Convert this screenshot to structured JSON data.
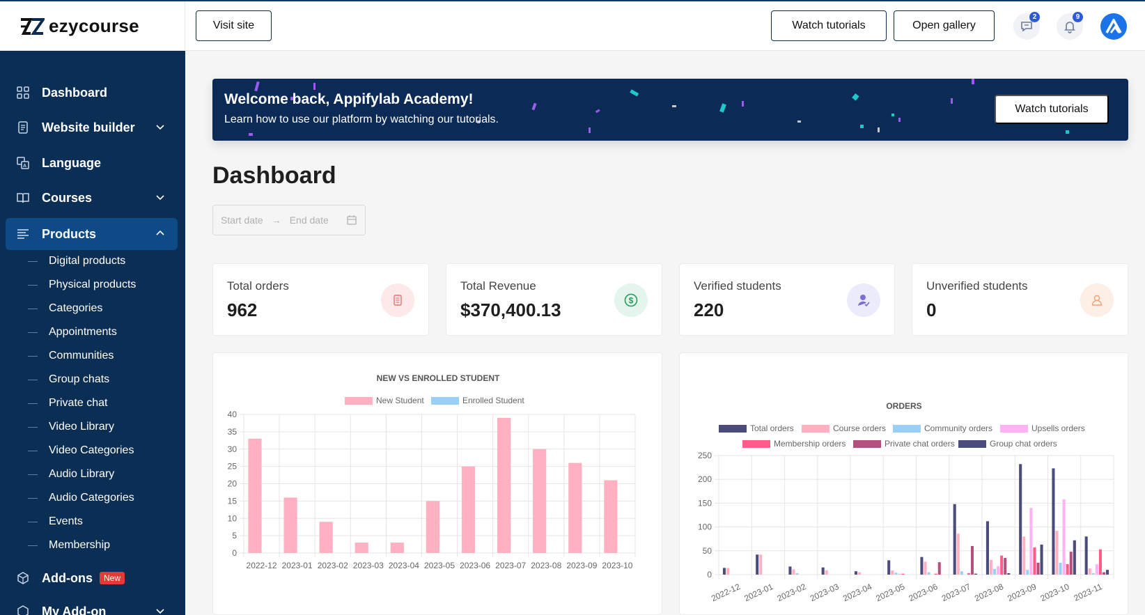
{
  "app": {
    "logo_text": "ezycourse"
  },
  "header": {
    "visit_site": "Visit site",
    "watch_tutorials": "Watch tutorials",
    "open_gallery": "Open gallery",
    "messages_count": "2",
    "notifications_count": "9"
  },
  "sidebar": {
    "items": [
      {
        "label": "Dashboard",
        "icon": "grid-icon"
      },
      {
        "label": "Website builder",
        "icon": "document-icon",
        "expandable": true
      },
      {
        "label": "Language",
        "icon": "translate-icon"
      },
      {
        "label": "Courses",
        "icon": "book-icon",
        "expandable": true
      },
      {
        "label": "Products",
        "icon": "list-icon",
        "expandable": true,
        "active": true
      }
    ],
    "sub_items": [
      "Digital products",
      "Physical products",
      "Categories",
      "Appointments",
      "Communities",
      "Group chats",
      "Private chat",
      "Video Library",
      "Video Categories",
      "Audio Library",
      "Audio Categories",
      "Events",
      "Membership"
    ],
    "addons": {
      "label": "Add-ons",
      "badge": "New"
    },
    "my_addon": {
      "label": "My Add-on"
    }
  },
  "banner": {
    "title": "Welcome back, Appifylab Academy!",
    "subtitle": "Learn how to use our platform by watching our tutorials.",
    "button": "Watch tutorials"
  },
  "page_title": "Dashboard",
  "date_range": {
    "start_placeholder": "Start date",
    "end_placeholder": "End date"
  },
  "stats": [
    {
      "label": "Total orders",
      "value": "962",
      "icon": "orders-icon",
      "bg": "#fde8ea",
      "color": "#e57373"
    },
    {
      "label": "Total Revenue",
      "value": "$370,400.13",
      "icon": "dollar-icon",
      "bg": "#e3f5ec",
      "color": "#1e9e5a"
    },
    {
      "label": "Verified students",
      "value": "220",
      "icon": "verified-user-icon",
      "bg": "#ecebfb",
      "color": "#7b6fd6"
    },
    {
      "label": "Unverified students",
      "value": "0",
      "icon": "user-icon",
      "bg": "#fdeee6",
      "color": "#f0a27a"
    }
  ],
  "chart_data": [
    {
      "type": "bar",
      "title": "NEW VS ENROLLED STUDENT",
      "categories": [
        "2022-12",
        "2023-01",
        "2023-02",
        "2023-03",
        "2023-04",
        "2023-05",
        "2023-06",
        "2023-07",
        "2023-08",
        "2023-09",
        "2023-10"
      ],
      "series": [
        {
          "name": "New Student",
          "color": "#ffb1c1",
          "values": [
            33,
            16,
            9,
            3,
            3,
            15,
            25,
            39,
            30,
            26,
            21
          ]
        },
        {
          "name": "Enrolled Student",
          "color": "#9ad0f5",
          "values": [
            0,
            0,
            0,
            0,
            0,
            0,
            0,
            0,
            0,
            0,
            0
          ]
        }
      ],
      "ylim": [
        0,
        40
      ],
      "yticks": [
        0,
        5,
        10,
        15,
        20,
        25,
        30,
        35,
        40
      ],
      "legend": "top",
      "grid": true
    },
    {
      "type": "bar",
      "title": "ORDERS",
      "categories": [
        "2022-12",
        "2023-01",
        "2023-02",
        "2023-03",
        "2023-04",
        "2023-05",
        "2023-06",
        "2023-07",
        "2023-08",
        "2023-09",
        "2023-10",
        "2023-11"
      ],
      "series": [
        {
          "name": "Total orders",
          "color": "#4b4b7c",
          "values": [
            14,
            42,
            17,
            15,
            7,
            30,
            37,
            148,
            112,
            232,
            223,
            80
          ]
        },
        {
          "name": "Course orders",
          "color": "#ffb1c1",
          "values": [
            14,
            42,
            11,
            9,
            5,
            9,
            27,
            86,
            31,
            80,
            92,
            13
          ]
        },
        {
          "name": "Community orders",
          "color": "#9ad0f5",
          "values": [
            0,
            0,
            3,
            0,
            0,
            4,
            5,
            7,
            12,
            10,
            25,
            3
          ]
        },
        {
          "name": "Upsells orders",
          "color": "#ffb3f5",
          "values": [
            0,
            0,
            0,
            0,
            0,
            2,
            0,
            0,
            18,
            140,
            158,
            22
          ]
        },
        {
          "name": "Membership orders",
          "color": "#ff5c8a",
          "values": [
            0,
            0,
            0,
            0,
            0,
            2,
            2,
            3,
            40,
            57,
            22,
            53
          ]
        },
        {
          "name": "Private chat orders",
          "color": "#b3507d",
          "values": [
            0,
            0,
            0,
            0,
            0,
            0,
            26,
            60,
            35,
            25,
            48,
            5
          ]
        },
        {
          "name": "Group chat orders",
          "color": "#4b4b7c",
          "values": [
            0,
            0,
            0,
            0,
            0,
            0,
            0,
            2,
            3,
            63,
            72,
            10
          ]
        }
      ],
      "ylim": [
        0,
        250
      ],
      "yticks": [
        0,
        50,
        100,
        150,
        200,
        250
      ],
      "legend": "top",
      "grid": true
    }
  ]
}
